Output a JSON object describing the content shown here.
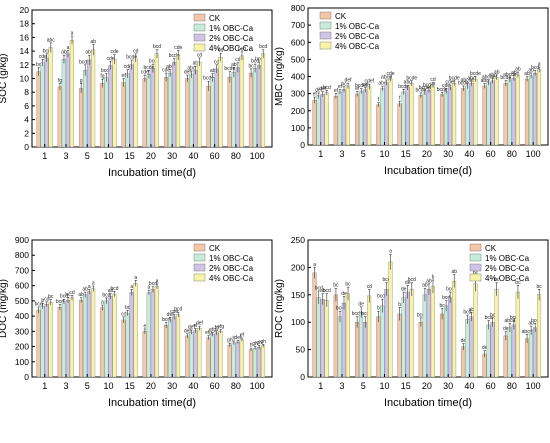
{
  "chart_data": [
    {
      "type": "bar",
      "panel": "top-left",
      "ylabel": "SOC (g/kg)",
      "xlabel": "Incubation time(d)",
      "ylim": [
        0,
        20
      ],
      "yticks": [
        0,
        2,
        4,
        6,
        8,
        10,
        12,
        14,
        16,
        18,
        20
      ],
      "categories": [
        "1",
        "3",
        "5",
        "10",
        "15",
        "20",
        "30",
        "40",
        "60",
        "80",
        "100"
      ],
      "legend_position": "top-right",
      "series": [
        {
          "name": "CK",
          "color": "#f5c6a8",
          "values": [
            11.0,
            8.8,
            8.6,
            9.3,
            9.4,
            10.0,
            10.2,
            10.0,
            8.9,
            10.2,
            10.8
          ],
          "errors": [
            0.6,
            0.5,
            0.7,
            0.6,
            0.6,
            0.5,
            0.6,
            0.5,
            0.7,
            0.8,
            0.6
          ]
        },
        {
          "name": "1% OBC-Ca",
          "color": "#c6ecdc",
          "values": [
            12.3,
            12.8,
            11.2,
            10.1,
            10.7,
            10.6,
            10.8,
            10.6,
            10.1,
            10.9,
            11.5
          ],
          "errors": [
            0.5,
            0.6,
            0.8,
            0.6,
            0.6,
            0.6,
            0.5,
            0.5,
            0.6,
            0.7,
            0.6
          ]
        },
        {
          "name": "2% OBC-Ca",
          "color": "#cfc4e6",
          "values": [
            13.0,
            13.6,
            12.7,
            11.9,
            12.0,
            11.5,
            12.4,
            11.2,
            11.4,
            11.6,
            11.9
          ],
          "errors": [
            0.6,
            0.5,
            0.7,
            0.6,
            0.7,
            0.6,
            0.5,
            0.6,
            0.6,
            0.7,
            0.5
          ]
        },
        {
          "name": "4% OBC-Ca",
          "color": "#f7f4a8",
          "values": [
            14.5,
            15.6,
            14.2,
            12.8,
            13.0,
            13.6,
            13.4,
            12.4,
            13.1,
            13.3,
            13.6
          ],
          "errors": [
            0.7,
            0.6,
            0.8,
            0.7,
            0.6,
            0.6,
            0.7,
            0.6,
            0.6,
            0.6,
            0.6
          ]
        }
      ],
      "annotations": [
        [
          "bc",
          "cde",
          "bcd",
          "abc"
        ],
        [
          "fg",
          "ab",
          "a",
          "a"
        ],
        [
          "g",
          "bcdef",
          "abc",
          "ab"
        ],
        [
          "fg",
          "bcde",
          "cde",
          "cde"
        ],
        [
          "ef",
          "cde",
          "bcde",
          "cd"
        ],
        [
          "cde",
          "bcde",
          "bcd",
          "bcd"
        ],
        [
          "cde",
          "abc",
          "bcde",
          "cde"
        ],
        [
          "def",
          "abc",
          "ab",
          "cd"
        ],
        [
          "bcde",
          "ab",
          "cd",
          "cd"
        ],
        [
          "bcde",
          "ab",
          "cd",
          "bcd"
        ],
        [
          "bc",
          "bcd",
          "bcd",
          "bcd"
        ]
      ]
    },
    {
      "type": "bar",
      "panel": "top-right",
      "ylabel": "MBC (mg/kg)",
      "xlabel": "Incubation time(d)",
      "ylim": [
        0,
        800
      ],
      "yticks": [
        0,
        100,
        200,
        300,
        400,
        500,
        600,
        700,
        800
      ],
      "categories": [
        "1",
        "3",
        "5",
        "10",
        "15",
        "20",
        "30",
        "40",
        "60",
        "80",
        "100"
      ],
      "legend_position": "top-left",
      "series": [
        {
          "name": "CK",
          "color": "#f5c6a8",
          "values": [
            262,
            285,
            298,
            235,
            240,
            290,
            295,
            330,
            345,
            360,
            385
          ],
          "errors": [
            18,
            15,
            14,
            12,
            16,
            14,
            13,
            15,
            14,
            16,
            14
          ]
        },
        {
          "name": "1% OBC-Ca",
          "color": "#c6ecdc",
          "values": [
            288,
            310,
            315,
            330,
            310,
            305,
            315,
            345,
            365,
            380,
            405
          ],
          "errors": [
            16,
            14,
            15,
            14,
            15,
            13,
            14,
            16,
            15,
            14,
            16
          ]
        },
        {
          "name": "2% OBC-Ca",
          "color": "#cfc4e6",
          "values": [
            296,
            325,
            322,
            365,
            335,
            320,
            335,
            360,
            375,
            390,
            420
          ],
          "errors": [
            15,
            15,
            14,
            15,
            14,
            14,
            15,
            14,
            16,
            15,
            15
          ]
        },
        {
          "name": "4% OBC-Ca",
          "color": "#f7f4a8",
          "values": [
            305,
            345,
            340,
            385,
            360,
            350,
            360,
            385,
            395,
            410,
            440
          ],
          "errors": [
            14,
            16,
            15,
            14,
            15,
            15,
            14,
            15,
            14,
            16,
            15
          ]
        }
      ],
      "annotations": [
        [
          "ef",
          "def",
          "def",
          "bcd"
        ],
        [
          "ef",
          "ef",
          "bc",
          "def"
        ],
        [
          "ef",
          "bcdef",
          "cd",
          "cdef"
        ],
        [
          "f",
          "abc",
          "abcd",
          "cde"
        ],
        [
          "f",
          "bcde",
          "abc",
          "bcde"
        ],
        [
          "bcde",
          "bcdef",
          "bcdef",
          "cd"
        ],
        [
          "bcde",
          "cde",
          "cdef",
          "bcde"
        ],
        [
          "bcde",
          "abcde",
          "abc",
          "bcde"
        ],
        [
          "abc",
          "abcde",
          "abc",
          "ab"
        ],
        [
          "bcde",
          "abcde",
          "ab",
          "ab"
        ],
        [
          "ab",
          "ab",
          "bcd",
          "a"
        ]
      ]
    },
    {
      "type": "bar",
      "panel": "bottom-left",
      "ylabel": "DOC (mg/kg)",
      "xlabel": "Incubation time(d)",
      "ylim": [
        0,
        900
      ],
      "yticks": [
        0,
        100,
        200,
        300,
        400,
        500,
        600,
        700,
        800,
        900
      ],
      "categories": [
        "1",
        "3",
        "5",
        "10",
        "15",
        "20",
        "30",
        "40",
        "60",
        "80",
        "100"
      ],
      "legend_position": "top-right",
      "series": [
        {
          "name": "CK",
          "color": "#f5c6a8",
          "values": [
            440,
            458,
            505,
            455,
            375,
            300,
            340,
            270,
            258,
            210,
            180
          ],
          "errors": [
            20,
            18,
            16,
            18,
            20,
            16,
            18,
            14,
            14,
            12,
            10
          ]
        },
        {
          "name": "1% OBC-Ca",
          "color": "#c6ecdc",
          "values": [
            465,
            495,
            540,
            500,
            420,
            555,
            375,
            295,
            280,
            225,
            190
          ],
          "errors": [
            18,
            16,
            18,
            20,
            18,
            16,
            16,
            14,
            12,
            12,
            10
          ]
        },
        {
          "name": "2% OBC-Ca",
          "color": "#cfc4e6",
          "values": [
            478,
            505,
            560,
            530,
            555,
            575,
            395,
            305,
            290,
            230,
            195
          ],
          "errors": [
            16,
            18,
            16,
            18,
            20,
            18,
            16,
            14,
            14,
            10,
            12
          ]
        },
        {
          "name": "4% OBC-Ca",
          "color": "#f7f4a8",
          "values": [
            490,
            520,
            580,
            545,
            615,
            595,
            410,
            320,
            300,
            245,
            205
          ],
          "errors": [
            18,
            16,
            18,
            18,
            20,
            16,
            16,
            14,
            12,
            12,
            10
          ]
        }
      ],
      "annotations": [
        [
          "bcd",
          "b",
          "cd",
          "bc"
        ],
        [
          "bcd",
          "bcd",
          "bc",
          "cd"
        ],
        [
          "ab",
          "ab",
          "a",
          "a"
        ],
        [
          "a",
          "bcd",
          "ab",
          "bcd"
        ],
        [
          "cd",
          "bc",
          "a",
          "a"
        ],
        [
          "e",
          "a",
          "bcd",
          "a"
        ],
        [
          "bcd",
          "def",
          "cde",
          "bcd"
        ],
        [
          "def",
          "def",
          "ef",
          "def"
        ],
        [
          "efg",
          "efg",
          "fg",
          "efg"
        ],
        [
          "gh",
          "h",
          "def",
          "ef"
        ],
        [
          "h",
          "gh",
          "gh",
          "gh"
        ]
      ]
    },
    {
      "type": "bar",
      "panel": "bottom-right",
      "ylabel": "ROC (mg/kg)",
      "xlabel": "Incubation time(d)",
      "ylim": [
        0,
        250
      ],
      "yticks": [
        0,
        50,
        100,
        150,
        200,
        250
      ],
      "categories": [
        "1",
        "3",
        "5",
        "10",
        "15",
        "20",
        "30",
        "40",
        "60",
        "80",
        "100"
      ],
      "legend_position": "top-right",
      "series": [
        {
          "name": "CK",
          "color": "#f5c6a8",
          "values": [
            190,
            150,
            100,
            110,
            115,
            100,
            115,
            55,
            42,
            75,
            70
          ],
          "errors": [
            10,
            12,
            10,
            10,
            12,
            8,
            10,
            6,
            6,
            8,
            8
          ]
        },
        {
          "name": "1% OBC-Ca",
          "color": "#c6ecdc",
          "values": [
            145,
            110,
            118,
            130,
            145,
            150,
            130,
            105,
            95,
            90,
            85
          ],
          "errors": [
            12,
            10,
            10,
            12,
            10,
            12,
            10,
            8,
            8,
            8,
            8
          ]
        },
        {
          "name": "2% OBC-Ca",
          "color": "#cfc4e6",
          "values": [
            142,
            135,
            100,
            160,
            155,
            160,
            145,
            110,
            100,
            95,
            90
          ],
          "errors": [
            10,
            12,
            10,
            12,
            12,
            10,
            10,
            8,
            8,
            8,
            8
          ]
        },
        {
          "name": "4% OBC-Ca",
          "color": "#f7f4a8",
          "values": [
            140,
            152,
            148,
            210,
            160,
            165,
            175,
            170,
            160,
            155,
            150
          ],
          "errors": [
            12,
            12,
            12,
            14,
            12,
            12,
            12,
            14,
            12,
            12,
            10
          ]
        }
      ],
      "annotations": [
        [
          "a",
          "bcd",
          "ab",
          "bcd"
        ],
        [
          "bc",
          "bcd",
          "de",
          "bc"
        ],
        [
          "bcde",
          "de",
          "bcd",
          "cd"
        ],
        [
          "b",
          "bcde",
          "bcd",
          "a"
        ],
        [
          "b",
          "de",
          "de",
          "bcd"
        ],
        [
          "bcd",
          "ab",
          "ab",
          "b"
        ],
        [
          "bc",
          "bcd",
          "bcd",
          "ab"
        ],
        [
          "de",
          "bcd",
          "ab",
          "bc"
        ],
        [
          "de",
          "bcd",
          "bc",
          "bc"
        ],
        [
          "de",
          "abcd",
          "bcd",
          "bc"
        ],
        [
          "abcd",
          "ab",
          "bcd",
          "bc"
        ]
      ]
    }
  ]
}
